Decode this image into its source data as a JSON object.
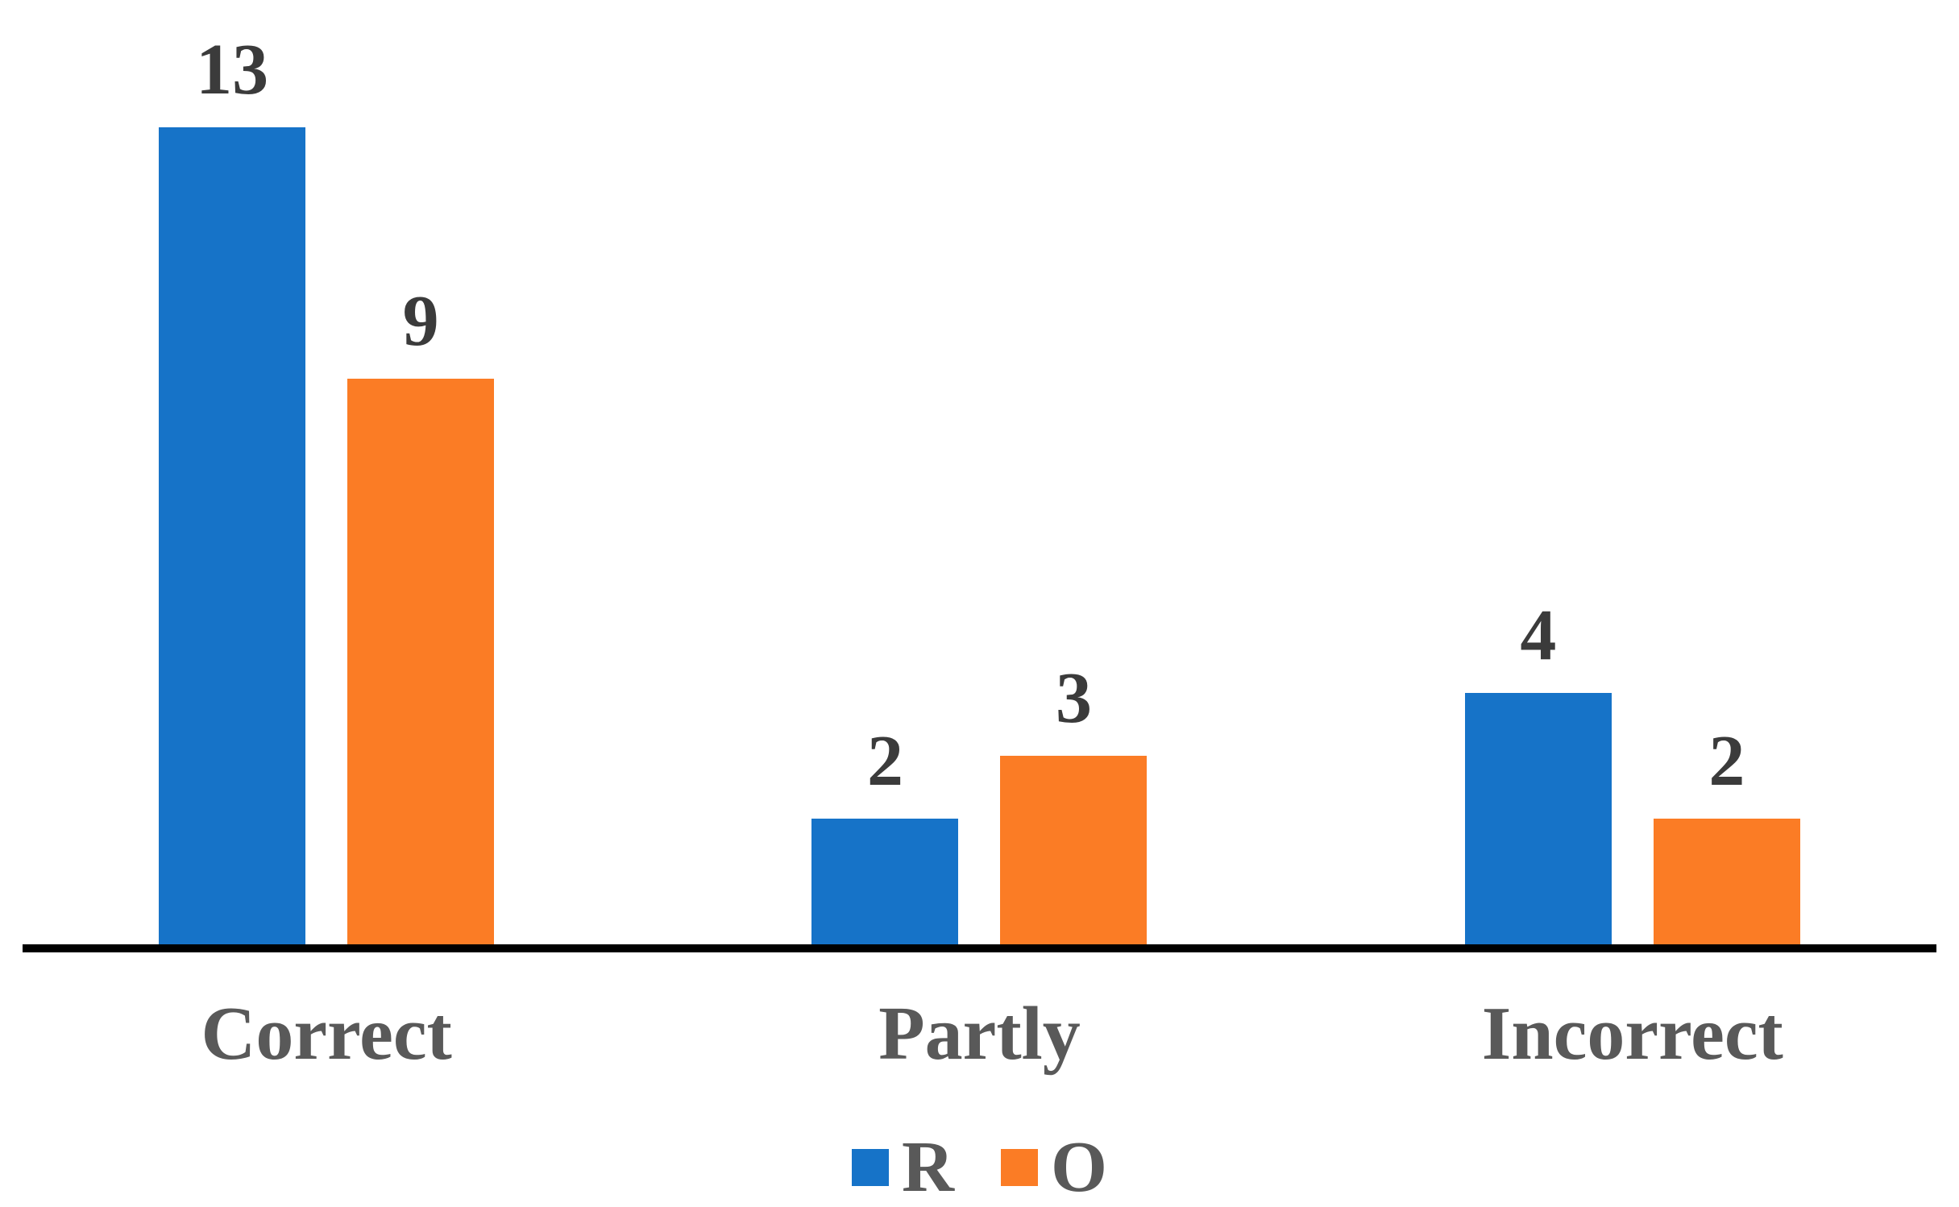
{
  "chart_data": {
    "type": "bar",
    "title": "",
    "xlabel": "",
    "ylabel": "",
    "categories": [
      "Correct",
      "Partly",
      "Incorrect"
    ],
    "series": [
      {
        "name": "R",
        "color": "#1673C8",
        "values": [
          13,
          2,
          4
        ]
      },
      {
        "name": "O",
        "color": "#FB7C25",
        "values": [
          9,
          3,
          2
        ]
      }
    ],
    "ylim": [
      0,
      15
    ],
    "grid": false,
    "legend_position": "bottom",
    "value_labels_shown": true
  },
  "style_colors": {
    "series_r_blue": "#1673C8",
    "series_o_orange": "#FB7C25",
    "axis_line": "#000000",
    "value_label_text": "#3b3b3b",
    "category_text": "#595959",
    "legend_text": "#595959"
  }
}
